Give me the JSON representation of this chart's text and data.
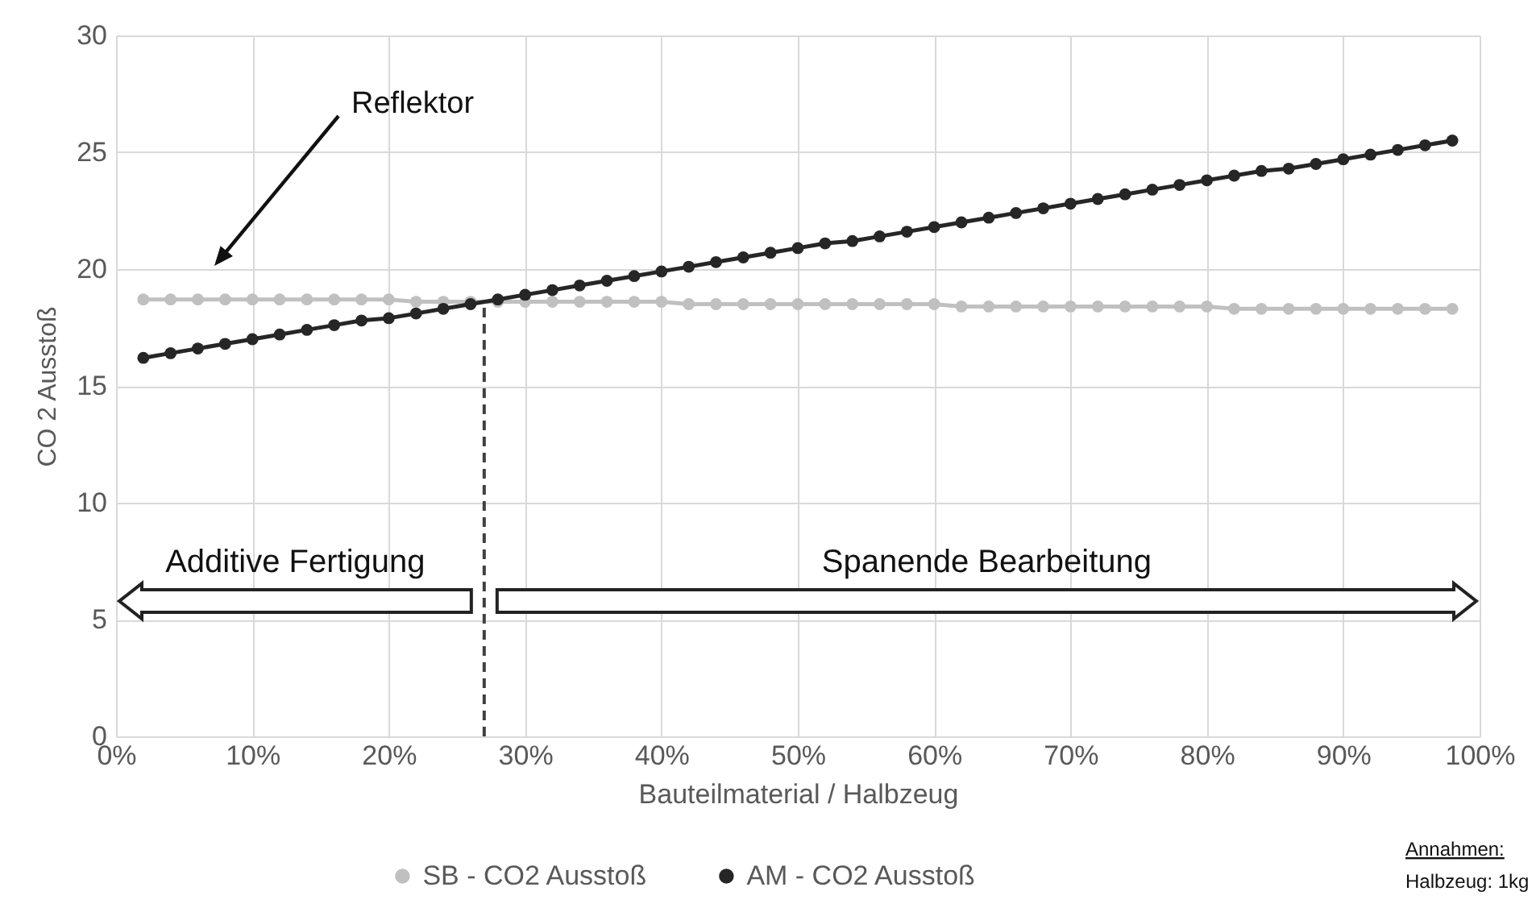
{
  "chart_data": {
    "type": "line",
    "x": [
      2,
      4,
      6,
      8,
      10,
      12,
      14,
      16,
      18,
      20,
      22,
      24,
      26,
      28,
      30,
      32,
      34,
      36,
      38,
      40,
      42,
      44,
      46,
      48,
      50,
      52,
      54,
      56,
      58,
      60,
      62,
      64,
      66,
      68,
      70,
      72,
      74,
      76,
      78,
      80,
      82,
      84,
      86,
      88,
      90,
      92,
      94,
      96,
      98
    ],
    "series": [
      {
        "name": "SB - CO2 Ausstoß",
        "color": "#c0c0c0",
        "values": [
          18.7,
          18.7,
          18.7,
          18.7,
          18.7,
          18.7,
          18.7,
          18.7,
          18.7,
          18.7,
          18.6,
          18.6,
          18.6,
          18.6,
          18.6,
          18.6,
          18.6,
          18.6,
          18.6,
          18.6,
          18.5,
          18.5,
          18.5,
          18.5,
          18.5,
          18.5,
          18.5,
          18.5,
          18.5,
          18.5,
          18.4,
          18.4,
          18.4,
          18.4,
          18.4,
          18.4,
          18.4,
          18.4,
          18.4,
          18.4,
          18.3,
          18.3,
          18.3,
          18.3,
          18.3,
          18.3,
          18.3,
          18.3,
          18.3
        ]
      },
      {
        "name": "AM - CO2 Ausstoß",
        "color": "#262626",
        "values": [
          16.2,
          16.4,
          16.6,
          16.8,
          17.0,
          17.2,
          17.4,
          17.6,
          17.8,
          17.9,
          18.1,
          18.3,
          18.5,
          18.7,
          18.9,
          19.1,
          19.3,
          19.5,
          19.7,
          19.9,
          20.1,
          20.3,
          20.5,
          20.7,
          20.9,
          21.1,
          21.2,
          21.4,
          21.6,
          21.8,
          22.0,
          22.2,
          22.4,
          22.6,
          22.8,
          23.0,
          23.2,
          23.4,
          23.6,
          23.8,
          24.0,
          24.2,
          24.3,
          24.5,
          24.7,
          24.9,
          25.1,
          25.3,
          25.5
        ]
      }
    ],
    "xlabel": "Bauteilmaterial / Halbzeug",
    "ylabel": "CO 2 Ausstoß",
    "xlim": [
      0,
      100
    ],
    "xticks": [
      {
        "value": 0,
        "label": "0%"
      },
      {
        "value": 10,
        "label": "10%"
      },
      {
        "value": 20,
        "label": "20%"
      },
      {
        "value": 30,
        "label": "30%"
      },
      {
        "value": 40,
        "label": "40%"
      },
      {
        "value": 50,
        "label": "50%"
      },
      {
        "value": 60,
        "label": "60%"
      },
      {
        "value": 70,
        "label": "70%"
      },
      {
        "value": 80,
        "label": "80%"
      },
      {
        "value": 90,
        "label": "90%"
      },
      {
        "value": 100,
        "label": "100%"
      }
    ],
    "ylim": [
      0,
      30
    ],
    "yticks": [
      0,
      5,
      10,
      15,
      20,
      25,
      30
    ],
    "grid": true,
    "legend": "bottom",
    "marker": "circle",
    "line_style": "solid",
    "ref_lines": [
      {
        "axis": "x",
        "value": 27,
        "line_style": "dashed",
        "color": "#404040"
      }
    ],
    "annotations": [
      "Reflektor",
      "Additive Fertigung",
      "Spanende Bearbeitung",
      "Annahmen:",
      "Halbzeug: 1kg"
    ]
  }
}
